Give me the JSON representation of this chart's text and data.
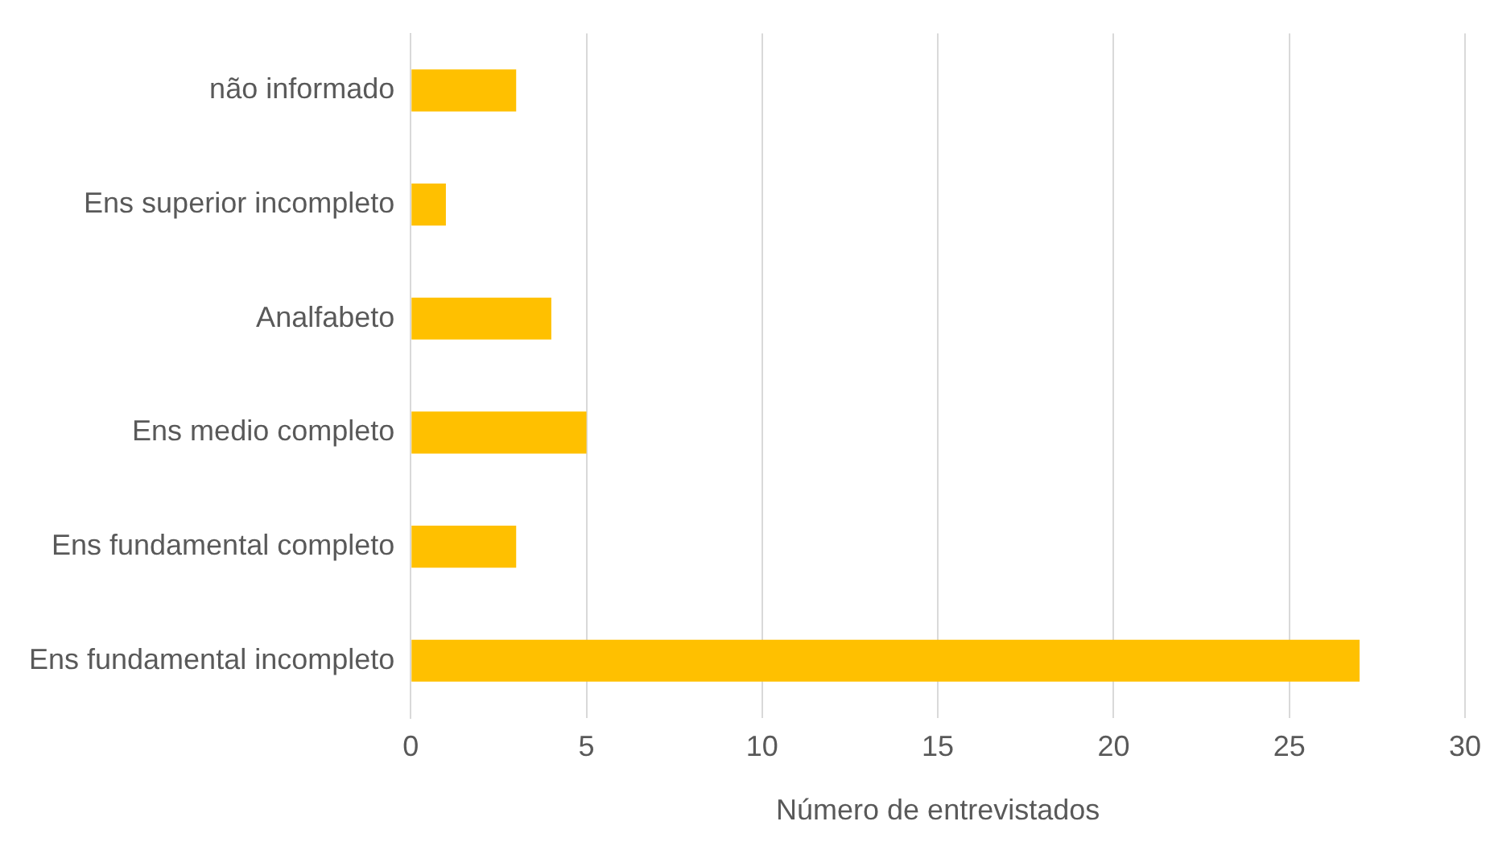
{
  "chart_data": {
    "type": "bar",
    "orientation": "horizontal",
    "xlabel": "Número de entrevistados",
    "categories": [
      "não informado",
      "Ens superior incompleto",
      "Analfabeto",
      "Ens medio completo",
      "Ens fundamental completo",
      "Ens fundamental incompleto"
    ],
    "values": [
      3,
      1,
      4,
      5,
      3,
      27
    ],
    "color": "#ffc000",
    "xlim": [
      0,
      30
    ],
    "xticks": [
      0,
      5,
      10,
      15,
      20,
      25,
      30
    ],
    "grid": "x",
    "legend": false
  }
}
